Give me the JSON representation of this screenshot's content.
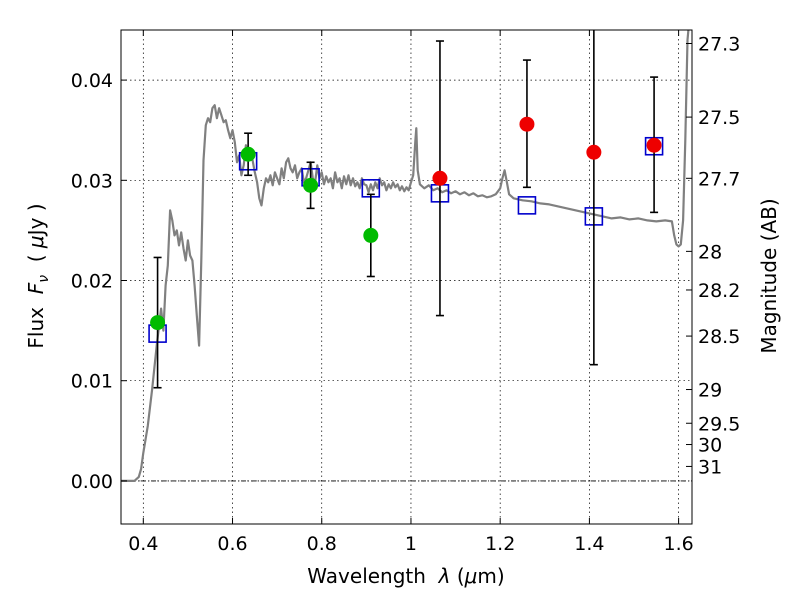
{
  "chart_data": {
    "type": "scatter",
    "xlabel": "Wavelength  λ (μm)",
    "ylabel": "Flux  F_ν  ( μJy )",
    "ylabel_parts": [
      "Flux  ",
      "F",
      "ν",
      "  ( ",
      "μ",
      "Jy )"
    ],
    "xlabel_parts": [
      "Wavelength  ",
      "λ",
      " (",
      "μ",
      "m)"
    ],
    "y2label": "Magnitude (AB)",
    "xlim": [
      0.35,
      1.63
    ],
    "ylim": [
      -0.0043,
      0.045
    ],
    "grid": true,
    "x_ticks": [
      {
        "v": 0.4,
        "label": "0.4"
      },
      {
        "v": 0.6,
        "label": "0.6"
      },
      {
        "v": 0.8,
        "label": "0.8"
      },
      {
        "v": 1.0,
        "label": "1"
      },
      {
        "v": 1.2,
        "label": "1.2"
      },
      {
        "v": 1.4,
        "label": "1.4"
      },
      {
        "v": 1.6,
        "label": "1.6"
      }
    ],
    "y_ticks": [
      {
        "v": 0.0,
        "label": "0.00"
      },
      {
        "v": 0.01,
        "label": "0.01"
      },
      {
        "v": 0.02,
        "label": "0.02"
      },
      {
        "v": 0.03,
        "label": "0.03"
      },
      {
        "v": 0.04,
        "label": "0.04"
      }
    ],
    "mag_ticks": [
      {
        "mag": 27.3,
        "label": "27.3"
      },
      {
        "mag": 27.5,
        "label": "27.5"
      },
      {
        "mag": 27.7,
        "label": "27.7"
      },
      {
        "mag": 28.0,
        "label": "28"
      },
      {
        "mag": 28.2,
        "label": "28.2"
      },
      {
        "mag": 28.5,
        "label": "28.5"
      },
      {
        "mag": 29.0,
        "label": "29"
      },
      {
        "mag": 29.5,
        "label": "29.5"
      },
      {
        "mag": 30.0,
        "label": "30"
      },
      {
        "mag": 31.0,
        "label": "31"
      }
    ],
    "colors": {
      "green": "#00bb00",
      "red": "#ee0000",
      "model": "#808080",
      "square": "#0000cc",
      "errorbar": "#000000"
    },
    "model_sed": [
      [
        0.35,
        0.0
      ],
      [
        0.38,
        0.0
      ],
      [
        0.39,
        0.0004
      ],
      [
        0.395,
        0.0012
      ],
      [
        0.4,
        0.0028
      ],
      [
        0.41,
        0.0055
      ],
      [
        0.42,
        0.0092
      ],
      [
        0.43,
        0.0135
      ],
      [
        0.44,
        0.0172
      ],
      [
        0.445,
        0.015
      ],
      [
        0.45,
        0.0195
      ],
      [
        0.455,
        0.0215
      ],
      [
        0.46,
        0.027
      ],
      [
        0.465,
        0.026
      ],
      [
        0.47,
        0.0245
      ],
      [
        0.475,
        0.025
      ],
      [
        0.48,
        0.0235
      ],
      [
        0.485,
        0.0248
      ],
      [
        0.49,
        0.0232
      ],
      [
        0.495,
        0.022
      ],
      [
        0.5,
        0.024
      ],
      [
        0.505,
        0.0225
      ],
      [
        0.51,
        0.022
      ],
      [
        0.515,
        0.0195
      ],
      [
        0.52,
        0.0165
      ],
      [
        0.525,
        0.0135
      ],
      [
        0.53,
        0.022
      ],
      [
        0.535,
        0.032
      ],
      [
        0.54,
        0.0355
      ],
      [
        0.545,
        0.0362
      ],
      [
        0.55,
        0.0358
      ],
      [
        0.555,
        0.0372
      ],
      [
        0.56,
        0.0375
      ],
      [
        0.565,
        0.0362
      ],
      [
        0.57,
        0.0372
      ],
      [
        0.575,
        0.0365
      ],
      [
        0.58,
        0.0358
      ],
      [
        0.585,
        0.036
      ],
      [
        0.59,
        0.035
      ],
      [
        0.595,
        0.0342
      ],
      [
        0.6,
        0.035
      ],
      [
        0.605,
        0.0338
      ],
      [
        0.61,
        0.0318
      ],
      [
        0.615,
        0.0325
      ],
      [
        0.62,
        0.0305
      ],
      [
        0.625,
        0.0315
      ],
      [
        0.63,
        0.0335
      ],
      [
        0.635,
        0.0328
      ],
      [
        0.64,
        0.0322
      ],
      [
        0.645,
        0.032
      ],
      [
        0.65,
        0.0308
      ],
      [
        0.655,
        0.0298
      ],
      [
        0.66,
        0.0282
      ],
      [
        0.665,
        0.0275
      ],
      [
        0.67,
        0.0292
      ],
      [
        0.675,
        0.0302
      ],
      [
        0.68,
        0.0298
      ],
      [
        0.685,
        0.0305
      ],
      [
        0.69,
        0.0295
      ],
      [
        0.695,
        0.0308
      ],
      [
        0.7,
        0.0302
      ],
      [
        0.705,
        0.0296
      ],
      [
        0.71,
        0.0312
      ],
      [
        0.715,
        0.0302
      ],
      [
        0.72,
        0.0318
      ],
      [
        0.725,
        0.0322
      ],
      [
        0.73,
        0.0312
      ],
      [
        0.735,
        0.0308
      ],
      [
        0.74,
        0.0315
      ],
      [
        0.745,
        0.0302
      ],
      [
        0.75,
        0.0308
      ],
      [
        0.755,
        0.0312
      ],
      [
        0.76,
        0.0298
      ],
      [
        0.765,
        0.0302
      ],
      [
        0.77,
        0.031
      ],
      [
        0.775,
        0.0318
      ],
      [
        0.78,
        0.0302
      ],
      [
        0.785,
        0.0298
      ],
      [
        0.79,
        0.0315
      ],
      [
        0.795,
        0.0302
      ],
      [
        0.8,
        0.0308
      ],
      [
        0.805,
        0.0296
      ],
      [
        0.81,
        0.0304
      ],
      [
        0.815,
        0.0298
      ],
      [
        0.82,
        0.0302
      ],
      [
        0.825,
        0.0292
      ],
      [
        0.83,
        0.0308
      ],
      [
        0.835,
        0.0298
      ],
      [
        0.84,
        0.0302
      ],
      [
        0.845,
        0.0292
      ],
      [
        0.85,
        0.0304
      ],
      [
        0.855,
        0.0296
      ],
      [
        0.86,
        0.0305
      ],
      [
        0.865,
        0.0295
      ],
      [
        0.87,
        0.0302
      ],
      [
        0.875,
        0.0294
      ],
      [
        0.88,
        0.0298
      ],
      [
        0.885,
        0.0292
      ],
      [
        0.89,
        0.0302
      ],
      [
        0.895,
        0.0296
      ],
      [
        0.9,
        0.0295
      ],
      [
        0.905,
        0.0288
      ],
      [
        0.91,
        0.0296
      ],
      [
        0.915,
        0.029
      ],
      [
        0.92,
        0.0298
      ],
      [
        0.925,
        0.0292
      ],
      [
        0.93,
        0.0302
      ],
      [
        0.935,
        0.0295
      ],
      [
        0.94,
        0.0298
      ],
      [
        0.945,
        0.029
      ],
      [
        0.95,
        0.0296
      ],
      [
        0.955,
        0.0292
      ],
      [
        0.96,
        0.0298
      ],
      [
        0.965,
        0.0293
      ],
      [
        0.97,
        0.0296
      ],
      [
        0.975,
        0.029
      ],
      [
        0.98,
        0.0294
      ],
      [
        0.985,
        0.0289
      ],
      [
        0.99,
        0.0293
      ],
      [
        0.995,
        0.029
      ],
      [
        1.0,
        0.0298
      ],
      [
        1.005,
        0.0305
      ],
      [
        1.01,
        0.034
      ],
      [
        1.012,
        0.0352
      ],
      [
        1.015,
        0.031
      ],
      [
        1.02,
        0.0296
      ],
      [
        1.03,
        0.0292
      ],
      [
        1.04,
        0.0295
      ],
      [
        1.05,
        0.029
      ],
      [
        1.06,
        0.0292
      ],
      [
        1.07,
        0.0288
      ],
      [
        1.08,
        0.029
      ],
      [
        1.09,
        0.0287
      ],
      [
        1.1,
        0.0289
      ],
      [
        1.11,
        0.0286
      ],
      [
        1.12,
        0.0288
      ],
      [
        1.13,
        0.0285
      ],
      [
        1.14,
        0.0287
      ],
      [
        1.15,
        0.0284
      ],
      [
        1.16,
        0.0285
      ],
      [
        1.17,
        0.0283
      ],
      [
        1.18,
        0.0284
      ],
      [
        1.19,
        0.0286
      ],
      [
        1.2,
        0.0292
      ],
      [
        1.205,
        0.0302
      ],
      [
        1.21,
        0.031
      ],
      [
        1.215,
        0.0298
      ],
      [
        1.22,
        0.0286
      ],
      [
        1.23,
        0.0282
      ],
      [
        1.25,
        0.028
      ],
      [
        1.27,
        0.0279
      ],
      [
        1.29,
        0.0277
      ],
      [
        1.31,
        0.0276
      ],
      [
        1.33,
        0.0274
      ],
      [
        1.35,
        0.0272
      ],
      [
        1.37,
        0.027
      ],
      [
        1.39,
        0.0268
      ],
      [
        1.41,
        0.0266
      ],
      [
        1.43,
        0.0264
      ],
      [
        1.45,
        0.0262
      ],
      [
        1.47,
        0.0263
      ],
      [
        1.49,
        0.0261
      ],
      [
        1.51,
        0.0262
      ],
      [
        1.53,
        0.026
      ],
      [
        1.55,
        0.0259
      ],
      [
        1.57,
        0.026
      ],
      [
        1.585,
        0.0259
      ],
      [
        1.59,
        0.0245
      ],
      [
        1.595,
        0.0236
      ],
      [
        1.6,
        0.0234
      ],
      [
        1.605,
        0.0236
      ],
      [
        1.61,
        0.026
      ],
      [
        1.615,
        0.034
      ],
      [
        1.62,
        0.044
      ],
      [
        1.622,
        0.045
      ]
    ],
    "model_points": [
      {
        "x": 0.432,
        "y": 0.0147
      },
      {
        "x": 0.635,
        "y": 0.0319
      },
      {
        "x": 0.775,
        "y": 0.0303
      },
      {
        "x": 0.91,
        "y": 0.0292
      },
      {
        "x": 1.065,
        "y": 0.0287
      },
      {
        "x": 1.26,
        "y": 0.0275
      },
      {
        "x": 1.41,
        "y": 0.0264
      },
      {
        "x": 1.545,
        "y": 0.0334
      }
    ],
    "observed_points": [
      {
        "x": 0.432,
        "y": 0.0158,
        "ylo": 0.0093,
        "yhi": 0.0223,
        "color": "green"
      },
      {
        "x": 0.635,
        "y": 0.0326,
        "ylo": 0.0305,
        "yhi": 0.0347,
        "color": "green"
      },
      {
        "x": 0.775,
        "y": 0.0295,
        "ylo": 0.0272,
        "yhi": 0.0318,
        "color": "green"
      },
      {
        "x": 0.91,
        "y": 0.0245,
        "ylo": 0.0204,
        "yhi": 0.0286,
        "color": "green"
      },
      {
        "x": 1.065,
        "y": 0.0302,
        "ylo": 0.0165,
        "yhi": 0.0439,
        "color": "red"
      },
      {
        "x": 1.26,
        "y": 0.0356,
        "ylo": 0.0293,
        "yhi": 0.042,
        "color": "red"
      },
      {
        "x": 1.41,
        "y": 0.0328,
        "ylo": 0.0116,
        "yhi": 0.045,
        "color": "red"
      },
      {
        "x": 1.545,
        "y": 0.0335,
        "ylo": 0.0268,
        "yhi": 0.0403,
        "color": "red"
      }
    ]
  }
}
